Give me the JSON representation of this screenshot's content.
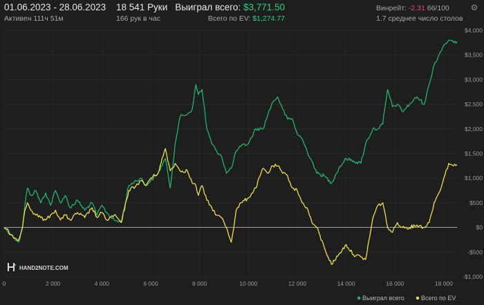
{
  "header": {
    "date_range": "01.06.2023 - 28.06.2023",
    "active_time": "Активен 111ч 51м",
    "hands": "18 541 Руки",
    "hands_per_hour": "166 рук в час",
    "won_label": "Выиграл всего:",
    "won_value": "$3,771.50",
    "ev_label": "Всего по EV:",
    "ev_value": "$1,274.77",
    "winrate_label": "Винрейт:",
    "winrate_value": "-2.31",
    "winrate_rest": "66/100",
    "avg_tables": "1.7 среднее число столов"
  },
  "logo": "HAND2NOTE.COM",
  "colors": {
    "won": "#1db86a",
    "ev": "#f0e040",
    "background": "#1e1e1e",
    "zero_line": "#c8c8c8",
    "negative": "#e2506e"
  },
  "icons": {
    "settings": "gear-icon"
  },
  "chart_data": {
    "type": "line",
    "xlim": [
      0,
      18541
    ],
    "ylim": [
      -1000,
      4000
    ],
    "x_ticks": [
      0,
      2000,
      4000,
      6000,
      8000,
      10000,
      12000,
      14000,
      16000,
      18000
    ],
    "x_tick_labels": [
      "0",
      "2 000",
      "4 000",
      "6 000",
      "8 000",
      "10 000",
      "12 000",
      "14 000",
      "16 000",
      "18 000"
    ],
    "y_ticks": [
      -1000,
      -500,
      0,
      500,
      1000,
      1500,
      2000,
      2500,
      3000,
      3500,
      4000
    ],
    "y_tick_labels": [
      "-$1,000",
      "-$500",
      "$0",
      "$500",
      "$1,000",
      "$1,500",
      "$2,000",
      "$2,500",
      "$3,000",
      "$3,500",
      "$4,000"
    ],
    "zero_line": true,
    "legend_position": "bottom-right",
    "series": [
      {
        "name": "Выиграл всего",
        "color": "#1db86a",
        "x": [
          0,
          300,
          600,
          750,
          850,
          950,
          1100,
          1300,
          1500,
          1700,
          1900,
          2100,
          2300,
          2500,
          2700,
          3000,
          3300,
          3600,
          3800,
          4000,
          4200,
          4500,
          4800,
          5100,
          5400,
          5600,
          5800,
          6000,
          6300,
          6600,
          6800,
          7000,
          7200,
          7500,
          7700,
          7850,
          7950,
          8100,
          8300,
          8500,
          8700,
          8900,
          9100,
          9300,
          9500,
          9700,
          10000,
          10300,
          10600,
          10800,
          11000,
          11200,
          11400,
          11600,
          11800,
          12000,
          12200,
          12400,
          12600,
          12800,
          13100,
          13400,
          13700,
          14000,
          14300,
          14600,
          14800,
          15100,
          15300,
          15500,
          15700,
          15900,
          16100,
          16300,
          16600,
          16900,
          17200,
          17400,
          17600,
          17800,
          18000,
          18200,
          18400,
          18541
        ],
        "y": [
          0,
          -150,
          -300,
          0,
          450,
          800,
          650,
          750,
          500,
          700,
          450,
          750,
          500,
          650,
          400,
          550,
          350,
          500,
          250,
          450,
          300,
          150,
          100,
          850,
          950,
          1000,
          850,
          950,
          1100,
          1400,
          800,
          1700,
          2250,
          2300,
          2400,
          2900,
          2700,
          2800,
          2000,
          1700,
          1550,
          1450,
          1100,
          1200,
          1550,
          1650,
          1700,
          2000,
          2000,
          2300,
          2550,
          2650,
          2400,
          2200,
          2200,
          1900,
          1800,
          1550,
          1350,
          1100,
          1050,
          900,
          1200,
          1400,
          1350,
          1300,
          1700,
          2000,
          2000,
          2100,
          2800,
          2450,
          2500,
          2350,
          2500,
          2650,
          2500,
          2900,
          3300,
          3500,
          3700,
          3800,
          3750,
          3771.5
        ]
      },
      {
        "name": "Всего по EV",
        "color": "#f0e040",
        "x": [
          0,
          300,
          600,
          750,
          850,
          950,
          1100,
          1300,
          1500,
          1700,
          1900,
          2100,
          2300,
          2500,
          2700,
          3000,
          3300,
          3600,
          3800,
          4000,
          4200,
          4500,
          4800,
          5100,
          5400,
          5600,
          5800,
          6000,
          6300,
          6600,
          6800,
          7000,
          7200,
          7500,
          7700,
          7850,
          7950,
          8100,
          8300,
          8500,
          8700,
          8900,
          9100,
          9300,
          9500,
          9700,
          10000,
          10300,
          10600,
          10800,
          11000,
          11200,
          11400,
          11600,
          11800,
          12000,
          12200,
          12400,
          12600,
          12800,
          13100,
          13400,
          13700,
          14000,
          14300,
          14600,
          14800,
          15100,
          15300,
          15500,
          15700,
          15900,
          16100,
          16300,
          16600,
          16900,
          17200,
          17400,
          17600,
          17800,
          18000,
          18200,
          18400,
          18541
        ],
        "y": [
          0,
          -150,
          -250,
          0,
          350,
          500,
          350,
          250,
          200,
          150,
          250,
          350,
          150,
          250,
          150,
          300,
          200,
          400,
          200,
          300,
          150,
          250,
          100,
          750,
          850,
          950,
          850,
          1000,
          1100,
          1600,
          1150,
          1300,
          1150,
          1150,
          900,
          850,
          650,
          850,
          550,
          400,
          250,
          200,
          0,
          -300,
          350,
          500,
          600,
          800,
          1200,
          1100,
          1250,
          1250,
          1100,
          1050,
          800,
          750,
          500,
          400,
          100,
          0,
          -400,
          -750,
          -550,
          -350,
          -550,
          -600,
          -650,
          200,
          450,
          500,
          0,
          -100,
          100,
          0,
          0,
          50,
          0,
          100,
          500,
          700,
          1000,
          1300,
          1250,
          1274.77
        ]
      }
    ]
  }
}
